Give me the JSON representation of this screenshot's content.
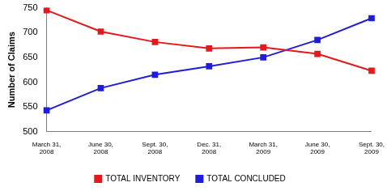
{
  "chart_data": {
    "type": "line",
    "y_label": "Number of Claims",
    "categories": [
      "March 31, 2008",
      "June 30, 2008",
      "Sept. 30, 2008",
      "Dec. 31, 2008",
      "March 31, 2009",
      "June 30, 2009",
      "Sept. 30, 2009"
    ],
    "series": [
      {
        "name": "TOTAL INVENTORY",
        "color": "#e8171b",
        "marker": "square",
        "line_style": "solid",
        "values": [
          745,
          702,
          681,
          668,
          670,
          657,
          623
        ]
      },
      {
        "name": "TOTAL CONCLUDED",
        "color": "#1d1ce0",
        "marker": "square",
        "line_style": "solid",
        "values": [
          543,
          588,
          615,
          632,
          650,
          685,
          729
        ]
      }
    ],
    "ylim": [
      500,
      750
    ],
    "yticks": [
      500,
      550,
      600,
      650,
      700,
      750
    ],
    "grid": false,
    "legend": "bottom"
  }
}
